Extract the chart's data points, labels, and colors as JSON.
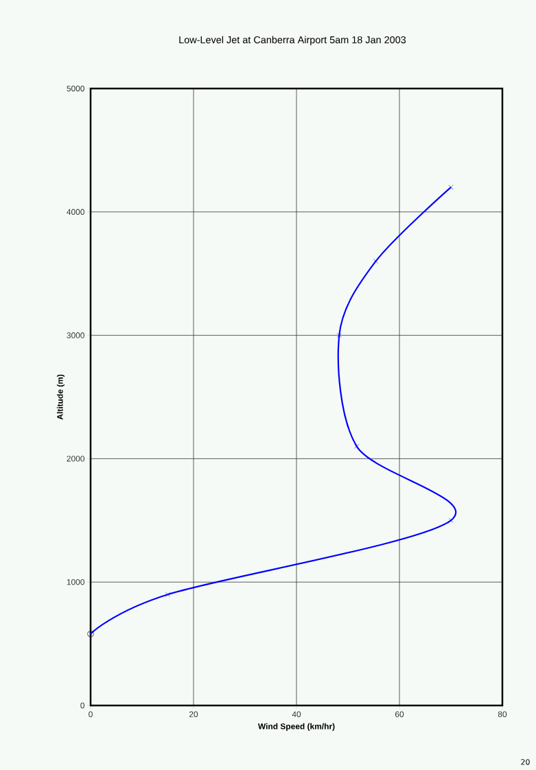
{
  "chart_data": {
    "type": "line",
    "title": "Low-Level Jet at Canberra Airport 5am 18 Jan 2003",
    "xlabel": "Wind Speed (km/hr)",
    "ylabel": "Altitude (m)",
    "series": [
      {
        "color": "#0000ff",
        "marker": "cross",
        "x": [
          0,
          15,
          70,
          51.7,
          48.3,
          55.4,
          70
        ],
        "values": [
          580,
          900,
          1500,
          2100,
          3000,
          3600,
          4200
        ]
      },
      {
        "type": "scatter",
        "color": "#000000",
        "marker": "circle",
        "x": [
          0
        ],
        "values": [
          580
        ]
      }
    ],
    "xlim": [
      0,
      80
    ],
    "ylim": [
      0,
      5000
    ],
    "xticks": [
      0,
      20,
      40,
      60,
      80
    ],
    "yticks": [
      0,
      1000,
      2000,
      3000,
      4000,
      5000
    ],
    "grid": true,
    "annotations": [
      "20"
    ]
  }
}
